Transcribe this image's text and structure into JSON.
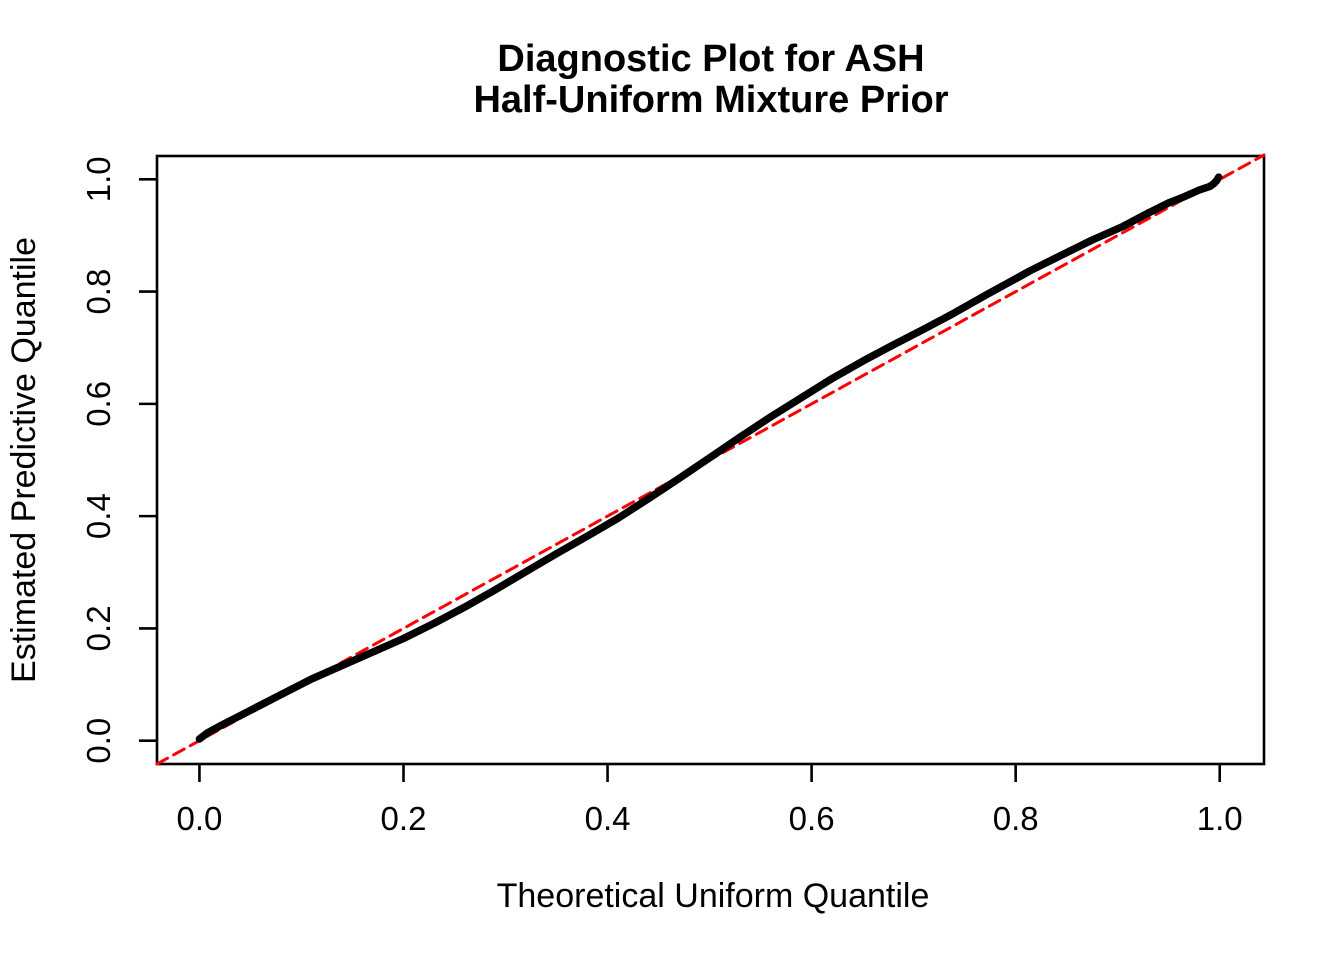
{
  "page": {
    "background_color": "#FFFFFF",
    "foreground_color": "#000000",
    "reference_line_color": "#FF0000"
  },
  "chart_data": {
    "type": "line",
    "title_line1": "Diagnostic Plot for ASH",
    "title_line2": "Half-Uniform Mixture Prior",
    "xlabel": "Theoretical Uniform Quantile",
    "ylabel": "Estimated Predictive Quantile",
    "xlim": [
      -0.0416,
      1.0434
    ],
    "ylim": [
      -0.0416,
      1.0416
    ],
    "grid": false,
    "legend": "none",
    "x_ticks": [
      0.0,
      0.2,
      0.4,
      0.6,
      0.8,
      1.0
    ],
    "y_ticks": [
      0.0,
      0.2,
      0.4,
      0.6,
      0.8,
      1.0
    ],
    "x_tick_labels": [
      "0.0",
      "0.2",
      "0.4",
      "0.6",
      "0.8",
      "1.0"
    ],
    "y_tick_labels": [
      "0.0",
      "0.2",
      "0.4",
      "0.6",
      "0.8",
      "1.0"
    ],
    "series": [
      {
        "name": "estimated-predictive-quantile-curve",
        "type": "line",
        "color": "#000000",
        "width": 7.5,
        "dash": null,
        "points": [
          [
            0.0,
            0.003
          ],
          [
            0.008,
            0.014
          ],
          [
            0.02,
            0.026
          ],
          [
            0.05,
            0.054
          ],
          [
            0.08,
            0.082
          ],
          [
            0.11,
            0.11
          ],
          [
            0.14,
            0.134
          ],
          [
            0.17,
            0.158
          ],
          [
            0.2,
            0.182
          ],
          [
            0.23,
            0.209
          ],
          [
            0.26,
            0.238
          ],
          [
            0.29,
            0.269
          ],
          [
            0.32,
            0.301
          ],
          [
            0.35,
            0.333
          ],
          [
            0.38,
            0.364
          ],
          [
            0.41,
            0.396
          ],
          [
            0.44,
            0.431
          ],
          [
            0.47,
            0.467
          ],
          [
            0.5,
            0.504
          ],
          [
            0.53,
            0.541
          ],
          [
            0.56,
            0.577
          ],
          [
            0.59,
            0.611
          ],
          [
            0.62,
            0.645
          ],
          [
            0.65,
            0.676
          ],
          [
            0.68,
            0.705
          ],
          [
            0.71,
            0.733
          ],
          [
            0.74,
            0.762
          ],
          [
            0.77,
            0.793
          ],
          [
            0.795,
            0.818
          ],
          [
            0.815,
            0.838
          ],
          [
            0.845,
            0.865
          ],
          [
            0.875,
            0.892
          ],
          [
            0.905,
            0.916
          ],
          [
            0.93,
            0.94
          ],
          [
            0.95,
            0.958
          ],
          [
            0.965,
            0.969
          ],
          [
            0.98,
            0.981
          ],
          [
            0.99,
            0.987
          ],
          [
            0.994,
            0.992
          ],
          [
            0.997,
            0.998
          ],
          [
            0.999,
            1.004
          ]
        ]
      },
      {
        "name": "identity-reference-line",
        "type": "dashed-line",
        "color": "#FF0000",
        "width": 3,
        "dash": [
          12,
          7
        ],
        "points": [
          [
            -0.0416,
            -0.0416
          ],
          [
            1.0434,
            1.0434
          ]
        ]
      }
    ]
  }
}
